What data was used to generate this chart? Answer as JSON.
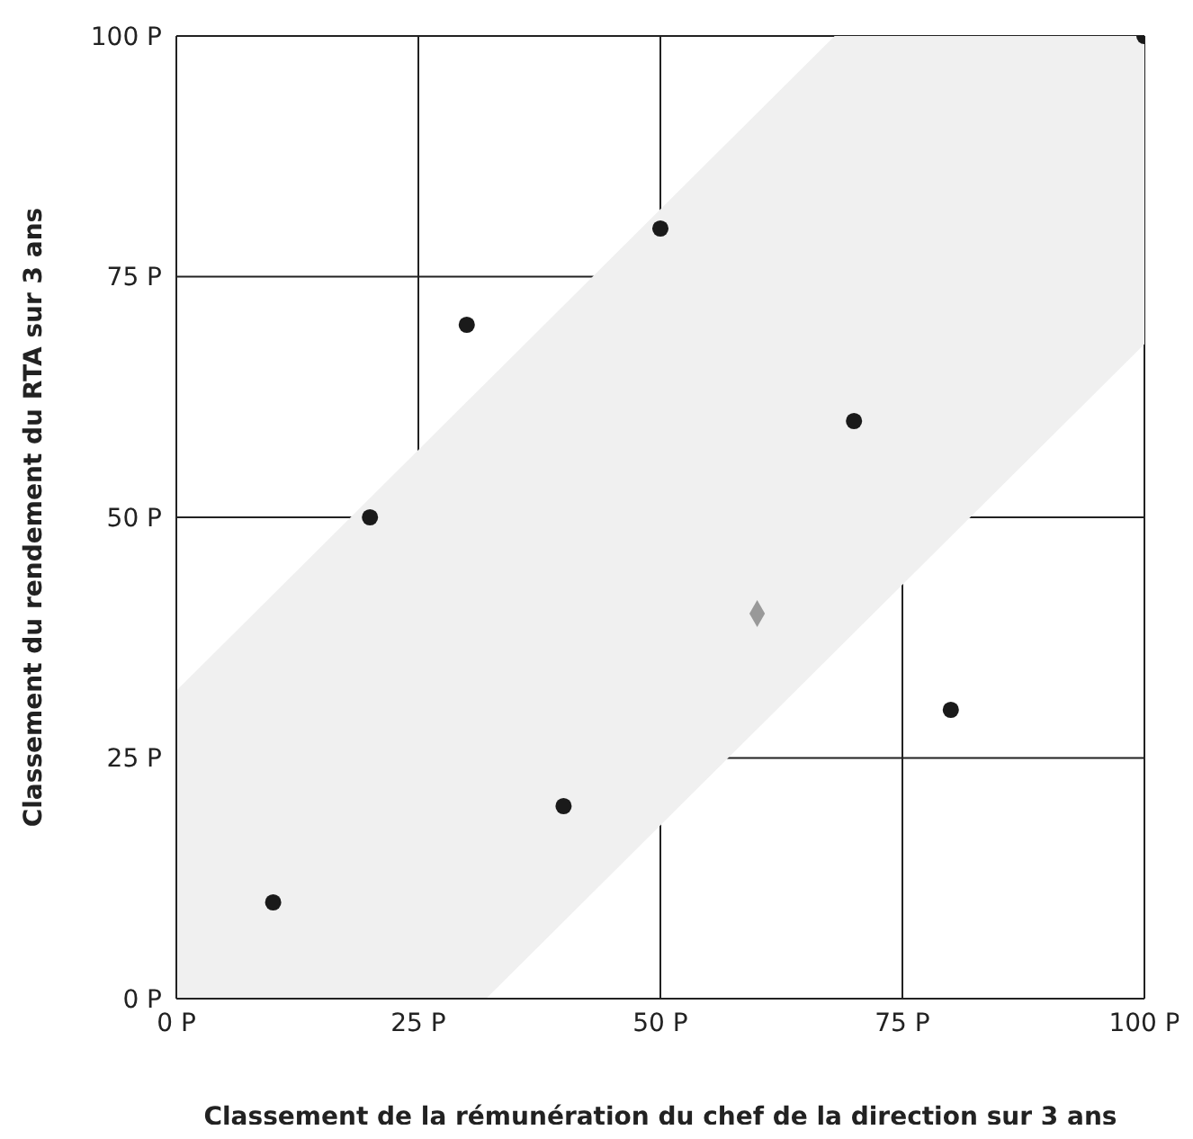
{
  "chart_data": {
    "type": "scatter",
    "xlabel": "Classement de la rémunération du chef de la direction sur 3 ans",
    "ylabel": "Classement du rendement du RTA sur 3 ans",
    "xlim": [
      0,
      100
    ],
    "ylim": [
      0,
      100
    ],
    "xticks": [
      {
        "value": 0,
        "label": "0 P"
      },
      {
        "value": 25,
        "label": "25 P"
      },
      {
        "value": 50,
        "label": "50 P"
      },
      {
        "value": 75,
        "label": "75 P"
      },
      {
        "value": 100,
        "label": "100 P"
      }
    ],
    "yticks": [
      {
        "value": 0,
        "label": "0 P"
      },
      {
        "value": 25,
        "label": "25 P"
      },
      {
        "value": 50,
        "label": "50 P"
      },
      {
        "value": 75,
        "label": "75 P"
      },
      {
        "value": 100,
        "label": "100 P"
      }
    ],
    "grid": true,
    "series": [
      {
        "type": "area",
        "color": "#f0f0f0",
        "x": [
          0,
          32,
          68,
          100
        ],
        "values": [
          null,
          null,
          null,
          null
        ],
        "lower": [
          0,
          0,
          36,
          68
        ],
        "upper": [
          32,
          64,
          100,
          100
        ]
      },
      {
        "color": "#1a1a1a",
        "marker": "circle",
        "x": [
          10,
          20,
          30,
          40,
          50,
          70,
          80,
          100
        ],
        "values": [
          10,
          50,
          70,
          20,
          80,
          60,
          30,
          100
        ]
      },
      {
        "color": "#999999",
        "marker": "diamond",
        "x": [
          60
        ],
        "values": [
          40
        ]
      }
    ]
  }
}
